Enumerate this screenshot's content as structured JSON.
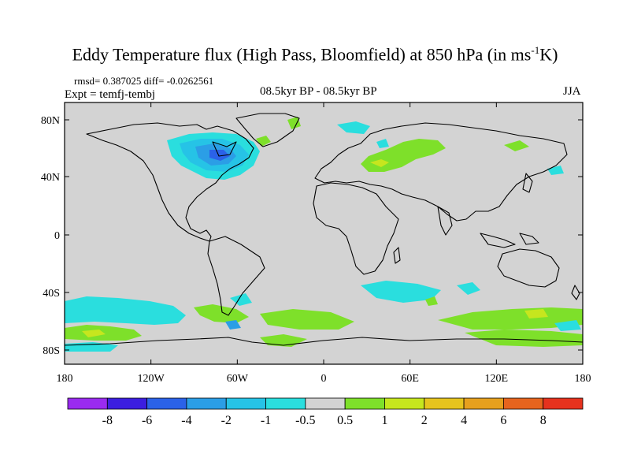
{
  "title": "Eddy Temperature flux (High Pass, Bloomfield) at 850 hPa (in ms",
  "title_sup": "-1",
  "title_end": "K)",
  "stats": "rmsd= 0.387025 diff= -0.0262561",
  "expt": "Expt = temfj-tembj",
  "subtitle": "08.5kyr BP - 08.5kyr BP",
  "season": "JJA",
  "lon_labels": [
    "180",
    "120W",
    "60W",
    "0",
    "60E",
    "120E",
    "180"
  ],
  "lat_labels": [
    "80N",
    "40N",
    "0",
    "40S",
    "80S"
  ],
  "colorbar": {
    "colors": [
      "#9a2bf0",
      "#3c1ee0",
      "#2b62e8",
      "#2b9ee6",
      "#26c3e6",
      "#2adede",
      "#d3d3d3",
      "#7ee02a",
      "#c6e61e",
      "#e6c41e",
      "#e6a01e",
      "#e6641e",
      "#e6321e"
    ],
    "labels": [
      "-8",
      "-6",
      "-4",
      "-2",
      "-1",
      "-0.5",
      "0.5",
      "1",
      "2",
      "4",
      "6",
      "8"
    ]
  },
  "colors": {
    "land_background": "#d3d3d3",
    "coast": "#000000"
  }
}
